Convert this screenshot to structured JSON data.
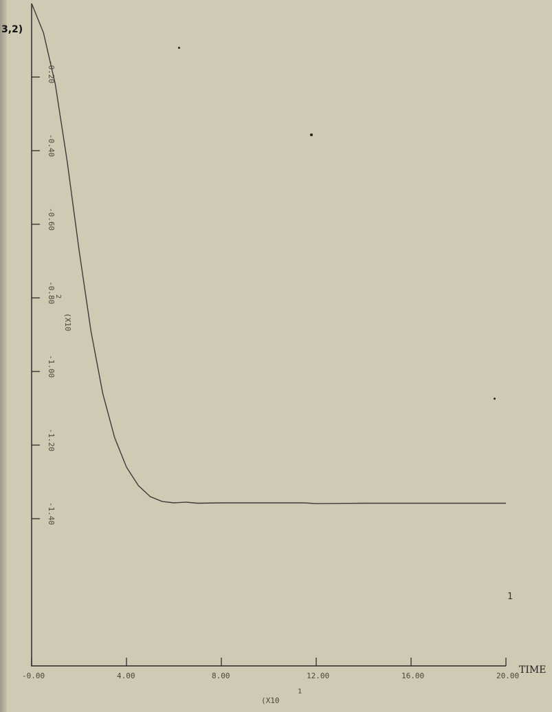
{
  "panel_id": "3,2)",
  "chart_data": {
    "type": "line",
    "xlabel": "TIME",
    "x_multiplier": "(X10",
    "x_multiplier_exponent": "1",
    "y_multiplier": "(X10",
    "y_multiplier_exponent": "2",
    "xlim": [
      0,
      20
    ],
    "ylim": [
      -1.8,
      0
    ],
    "x_ticks": [
      {
        "value": 0,
        "label": "-0.00"
      },
      {
        "value": 4,
        "label": "4.00"
      },
      {
        "value": 8,
        "label": "8.00"
      },
      {
        "value": 12,
        "label": "12.00"
      },
      {
        "value": 16,
        "label": "16.00"
      },
      {
        "value": 20,
        "label": "20.00"
      }
    ],
    "y_ticks": [
      {
        "value": -0.2,
        "label": "-0.20"
      },
      {
        "value": -0.4,
        "label": "-0.40"
      },
      {
        "value": -0.6,
        "label": "-0.60"
      },
      {
        "value": -0.8,
        "label": "-0.80"
      },
      {
        "value": -1.0,
        "label": "-1.00"
      },
      {
        "value": -1.2,
        "label": "-1.20"
      },
      {
        "value": -1.4,
        "label": "-1.40"
      }
    ],
    "series": [
      {
        "name": "1",
        "x": [
          0.0,
          0.5,
          1.0,
          1.5,
          2.0,
          2.5,
          3.0,
          3.5,
          4.0,
          4.5,
          5.0,
          5.5,
          6.0,
          6.5,
          7.0,
          8.0,
          10.0,
          11.5,
          12.0,
          14.0,
          16.0,
          18.0,
          20.0
        ],
        "y": [
          0.0,
          -0.08,
          -0.22,
          -0.43,
          -0.67,
          -0.89,
          -1.06,
          -1.18,
          -1.26,
          -1.31,
          -1.34,
          -1.353,
          -1.357,
          -1.355,
          -1.358,
          -1.357,
          -1.357,
          -1.357,
          -1.359,
          -1.358,
          -1.358,
          -1.358,
          -1.358
        ]
      }
    ]
  }
}
